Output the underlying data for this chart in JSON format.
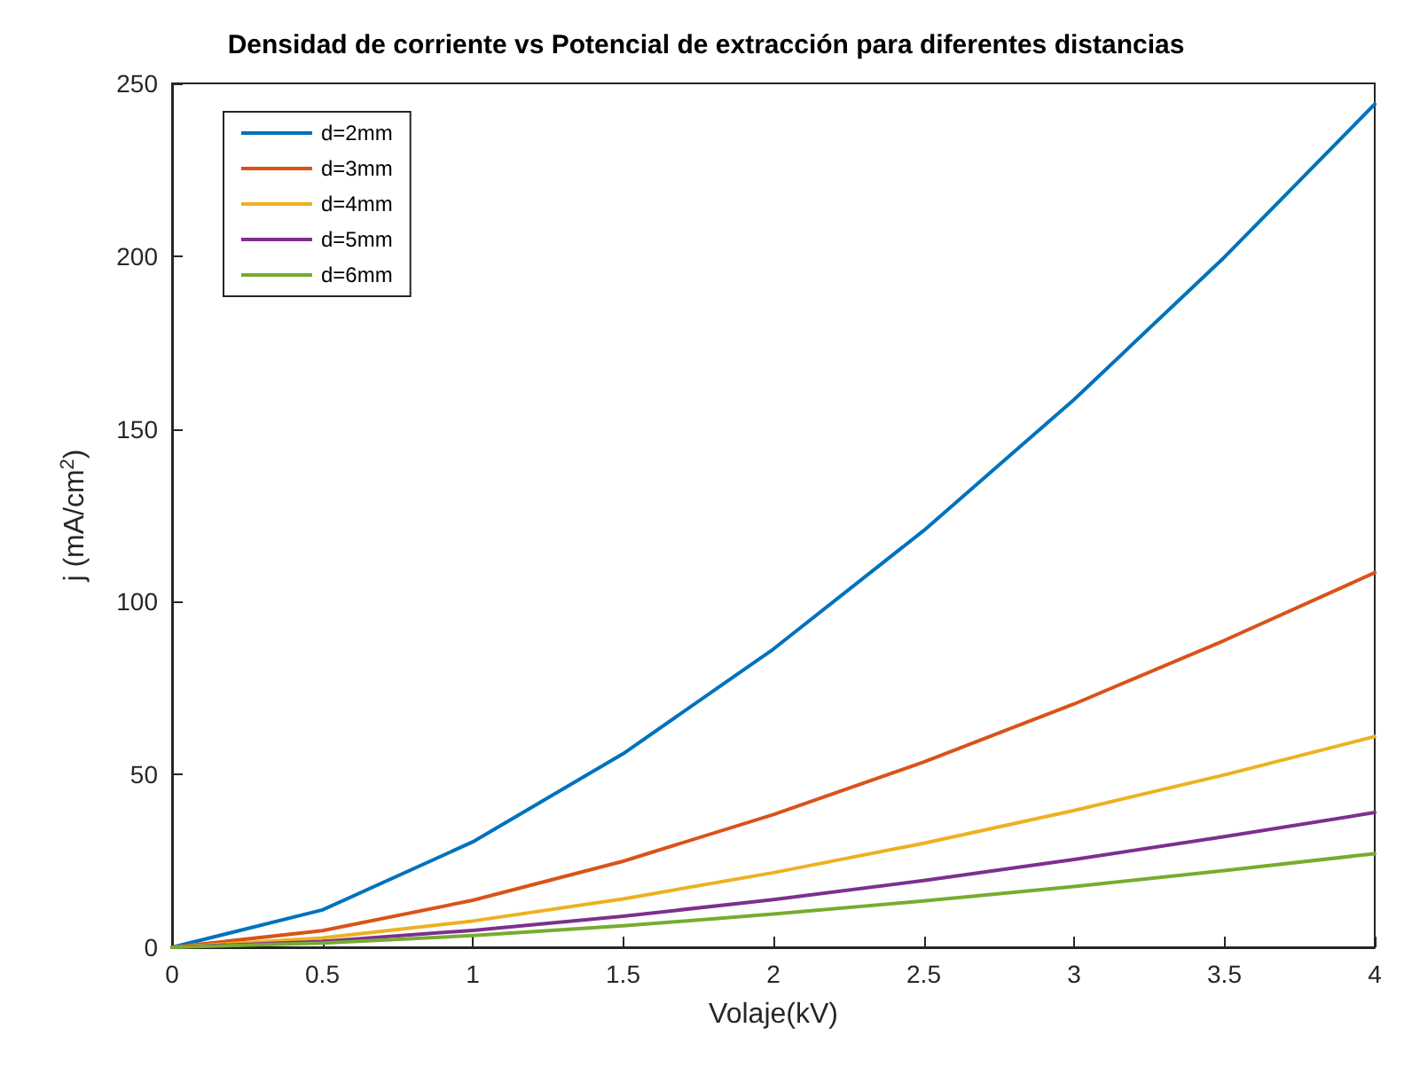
{
  "chart_data": {
    "type": "line",
    "title": "Densidad de corriente vs Potencial de extracción para diferentes distancias",
    "xlabel": "Volaje(kV)",
    "ylabel": "j (mA/cm$^{2}$)",
    "x": [
      0,
      0.5,
      1,
      1.5,
      2,
      2.5,
      3,
      3.5,
      4
    ],
    "series": [
      {
        "name": "d=2mm",
        "color": "#0072bd",
        "values": [
          0,
          10.8,
          30.5,
          56,
          86.3,
          120.6,
          158.5,
          199.7,
          244
        ]
      },
      {
        "name": "d=3mm",
        "color": "#d95319",
        "values": [
          0,
          4.8,
          13.6,
          24.9,
          38.4,
          53.6,
          70.4,
          88.8,
          108.4
        ]
      },
      {
        "name": "d=4mm",
        "color": "#edb120",
        "values": [
          0,
          2.7,
          7.6,
          14,
          21.6,
          30.1,
          39.6,
          49.9,
          61
        ]
      },
      {
        "name": "d=5mm",
        "color": "#7e2f8e",
        "values": [
          0,
          1.7,
          4.9,
          9,
          13.8,
          19.3,
          25.4,
          32,
          39
        ]
      },
      {
        "name": "d=6mm",
        "color": "#77ac30",
        "values": [
          0,
          1.2,
          3.4,
          6.2,
          9.6,
          13.4,
          17.6,
          22.2,
          27.1
        ]
      }
    ],
    "xlim": [
      0,
      4
    ],
    "xticks": [
      0,
      0.5,
      1,
      1.5,
      2,
      2.5,
      3,
      3.5,
      4
    ],
    "ylim": [
      0,
      250
    ],
    "yticks": [
      0,
      50,
      100,
      150,
      200,
      250
    ],
    "grid": false,
    "legend": "top left",
    "marker": "none",
    "line_style": "solid"
  }
}
